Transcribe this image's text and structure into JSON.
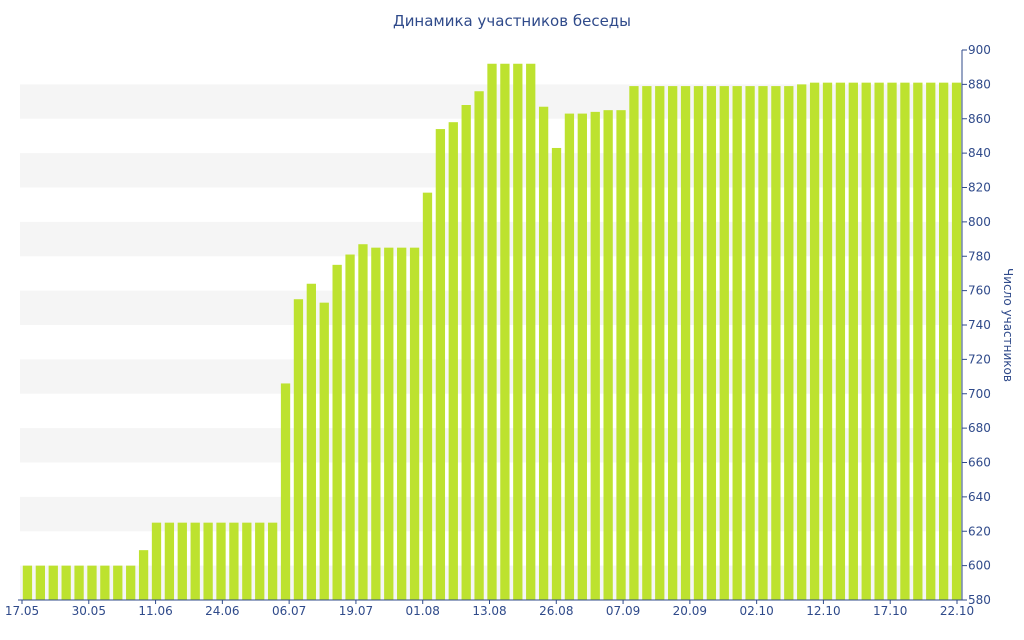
{
  "chart_data": {
    "type": "bar",
    "title": "Динамика участников беседы",
    "xlabel": "",
    "ylabel": "Число участников",
    "ylim": [
      580,
      900
    ],
    "yticks": [
      580,
      600,
      620,
      640,
      660,
      680,
      700,
      720,
      740,
      760,
      780,
      800,
      820,
      840,
      860,
      880,
      900
    ],
    "xtick_labels": [
      "17.05",
      "30.05",
      "11.06",
      "24.06",
      "06.07",
      "19.07",
      "01.08",
      "13.08",
      "26.08",
      "07.09",
      "20.09",
      "02.10",
      "12.10",
      "17.10",
      "22.10"
    ],
    "grid": "horizontal bands",
    "colors": {
      "bar": "#bde22f",
      "text": "#2f4a8a",
      "band": "#f5f5f5",
      "axis": "#2f4a8a"
    },
    "values": [
      600,
      600,
      600,
      600,
      600,
      600,
      600,
      600,
      600,
      609,
      625,
      625,
      625,
      625,
      625,
      625,
      625,
      625,
      625,
      625,
      706,
      755,
      764,
      753,
      775,
      781,
      787,
      785,
      785,
      785,
      785,
      817,
      854,
      858,
      868,
      876,
      892,
      892,
      892,
      892,
      867,
      843,
      863,
      863,
      864,
      865,
      865,
      879,
      879,
      879,
      879,
      879,
      879,
      879,
      879,
      879,
      879,
      879,
      879,
      879,
      880,
      881,
      881,
      881,
      881,
      881,
      881,
      881,
      881,
      881,
      881,
      881,
      881
    ]
  }
}
